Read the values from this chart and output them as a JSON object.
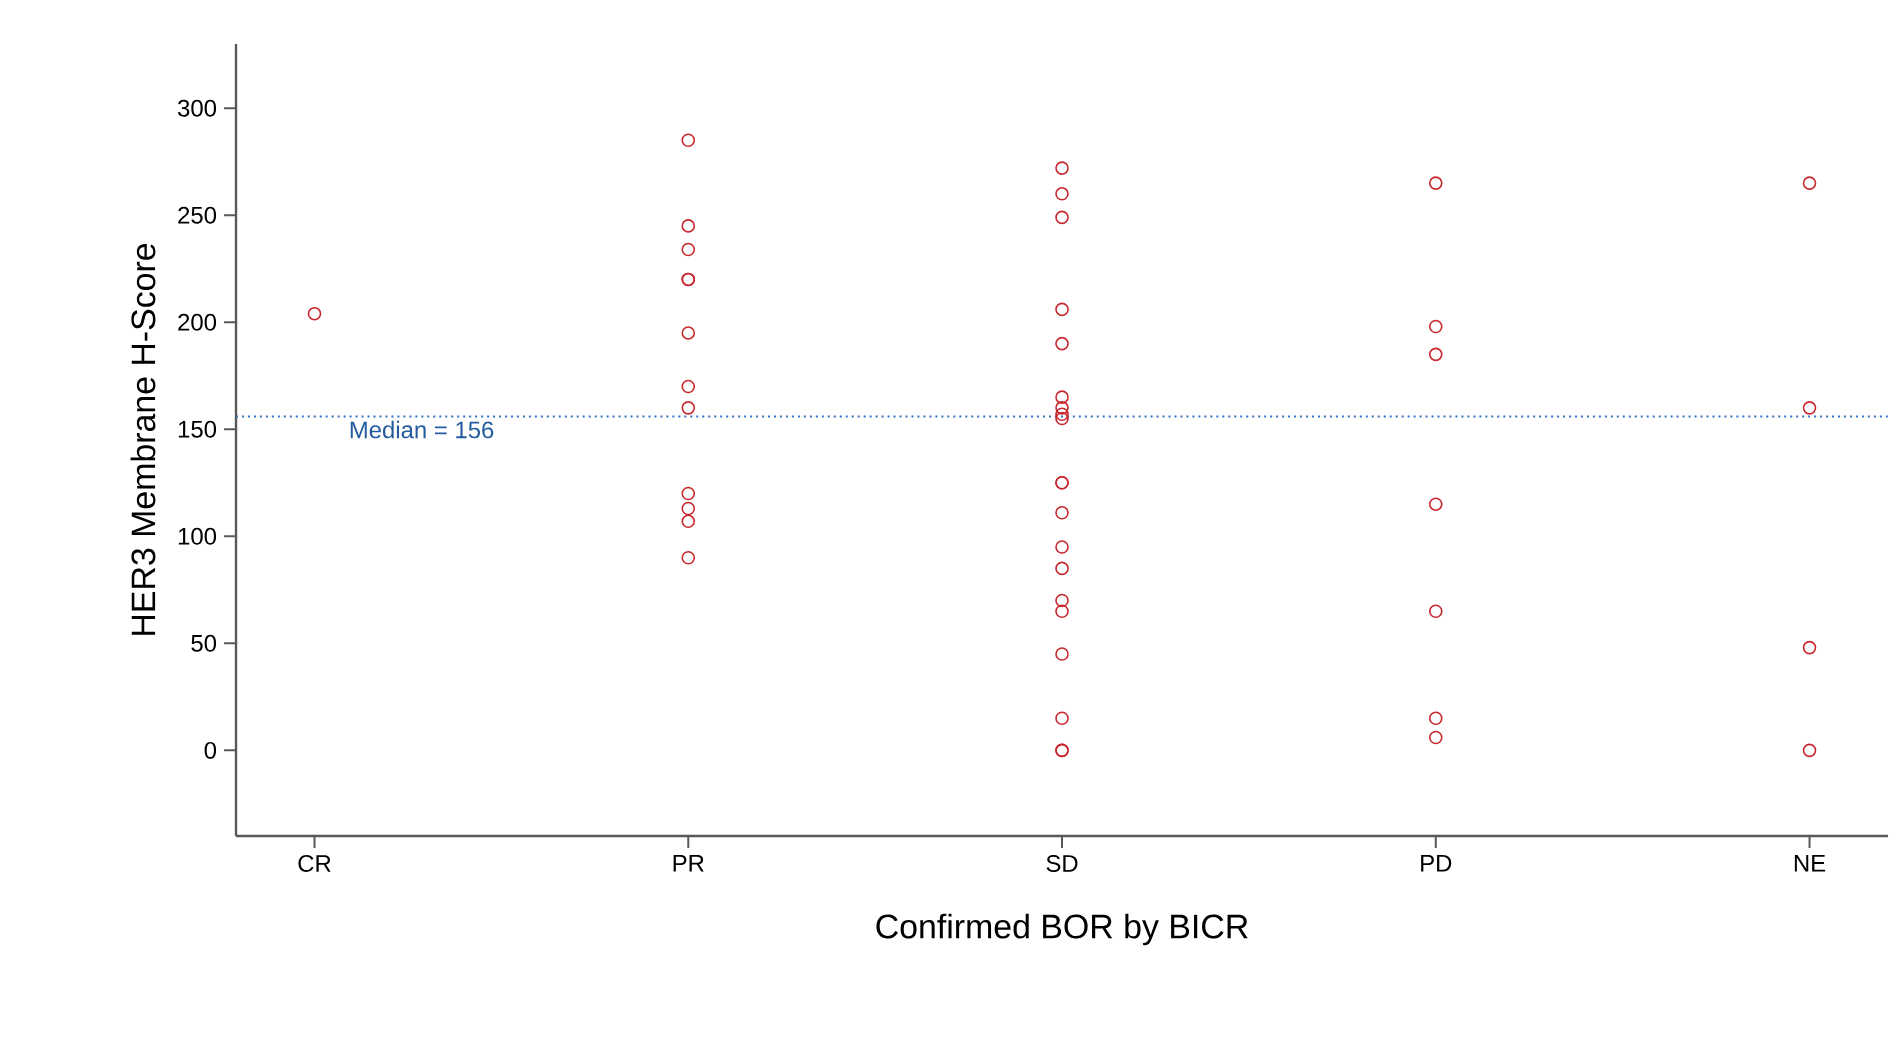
{
  "chart_data": {
    "type": "scatter",
    "xlabel": "Confirmed BOR by BICR",
    "ylabel": "HER3 Membrane H-Score",
    "categories": [
      "CR",
      "PR",
      "SD",
      "PD",
      "NE"
    ],
    "ylim": [
      -40,
      330
    ],
    "yticks": [
      0,
      50,
      100,
      150,
      200,
      250,
      300
    ],
    "marker": "circle",
    "series": [
      {
        "color": "#c8282e",
        "x": [
          "CR",
          "PR",
          "PR",
          "PR",
          "PR",
          "PR",
          "PR",
          "PR",
          "PR",
          "PR",
          "PR",
          "PR",
          "PR",
          "SD",
          "SD",
          "SD",
          "SD",
          "SD",
          "SD",
          "SD",
          "SD",
          "SD",
          "SD",
          "SD",
          "SD",
          "SD",
          "SD",
          "SD",
          "SD",
          "SD",
          "SD",
          "SD",
          "SD",
          "PD",
          "PD",
          "PD",
          "PD",
          "PD",
          "PD",
          "PD",
          "NE",
          "NE",
          "NE",
          "NE"
        ],
        "values": [
          204,
          285,
          245,
          234,
          220,
          220,
          195,
          170,
          160,
          120,
          113,
          107,
          90,
          272,
          260,
          249,
          206,
          190,
          165,
          160,
          157,
          155,
          125,
          125,
          111,
          95,
          85,
          70,
          65,
          45,
          15,
          0,
          0,
          265,
          198,
          185,
          115,
          65,
          15,
          6,
          265,
          160,
          48,
          0
        ]
      }
    ],
    "ref_lines": [
      {
        "axis": "y",
        "value": 156,
        "label": "Median = 156",
        "color": "#2e73c4",
        "line_style": "dotted"
      }
    ]
  }
}
